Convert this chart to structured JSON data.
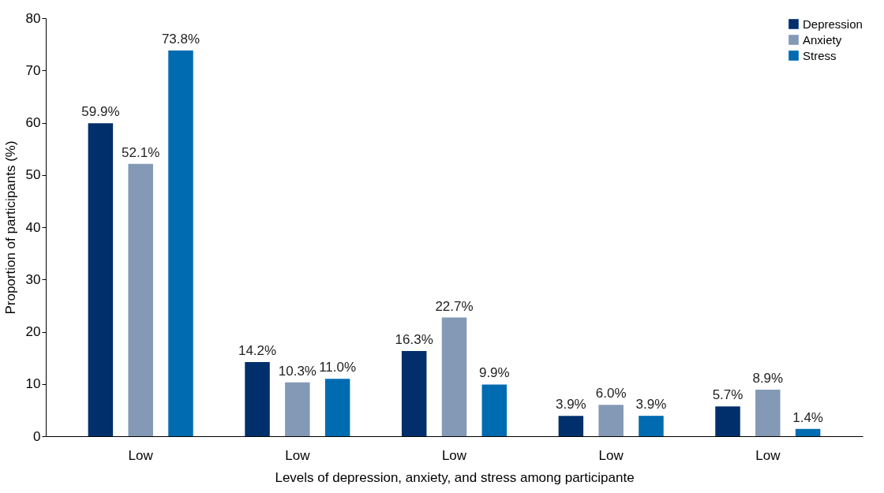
{
  "chart_data": {
    "type": "bar",
    "xlabel": "Levels of depression, anxiety, and stress among participante",
    "ylabel": "Proportion of participants (%)",
    "categories": [
      "Low",
      "Low",
      "Low",
      "Low",
      "Low"
    ],
    "series": [
      {
        "name": "Depression",
        "color": "#002f6c",
        "values": [
          59.9,
          14.2,
          16.3,
          3.9,
          5.7
        ],
        "value_labels": [
          "59.9%",
          "14.2%",
          "16.3%",
          "3.9%",
          "5.7%"
        ]
      },
      {
        "name": "Anxiety",
        "color": "#8399b6",
        "values": [
          52.1,
          10.3,
          22.7,
          6.0,
          8.9
        ],
        "value_labels": [
          "52.1%",
          "10.3%",
          "22.7%",
          "6.0%",
          "8.9%"
        ]
      },
      {
        "name": "Stress",
        "color": "#006bb1",
        "values": [
          73.8,
          11.0,
          9.9,
          3.9,
          1.4
        ],
        "value_labels": [
          "73.8%",
          "11.0%",
          "9.9%",
          "3.9%",
          "1.4%"
        ]
      }
    ],
    "ylim": [
      0,
      80
    ],
    "yticks": [
      0,
      10,
      20,
      30,
      40,
      50,
      60,
      70,
      80
    ],
    "grid": false,
    "legend": "top right"
  }
}
